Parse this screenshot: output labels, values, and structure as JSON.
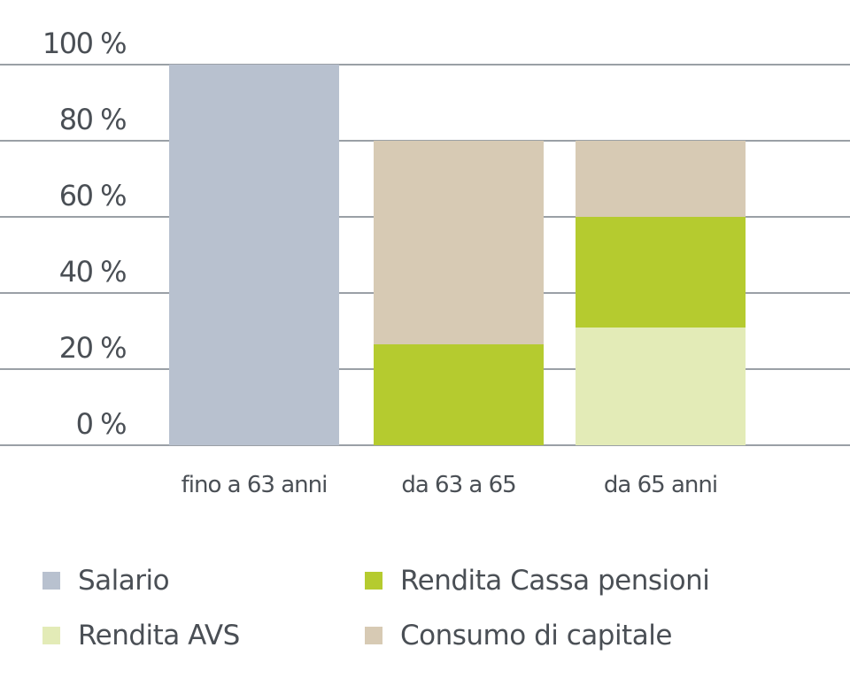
{
  "chart_data": {
    "type": "bar",
    "stacked": true,
    "title": "",
    "xlabel": "",
    "ylabel": "",
    "ylim": [
      0,
      100
    ],
    "yticks": [
      "0 %",
      "20 %",
      "40 %",
      "60 %",
      "80 %",
      "100 %"
    ],
    "grid": true,
    "legend_position": "bottom",
    "categories": [
      "fino a 63 anni",
      "da 63 a 65",
      "da 65 anni"
    ],
    "series": [
      {
        "name": "Salario",
        "color": "#b8c1cf",
        "values": [
          100,
          0,
          0
        ]
      },
      {
        "name": "Rendita AVS",
        "color": "#e3ebb7",
        "values": [
          0,
          0,
          31
        ]
      },
      {
        "name": "Rendita Cassa pensioni",
        "color": "#b5cb2f",
        "values": [
          0,
          26.5,
          29
        ]
      },
      {
        "name": "Consumo di capitale",
        "color": "#d7cab4",
        "values": [
          0,
          53.5,
          20
        ]
      }
    ]
  },
  "legend": {
    "items": [
      {
        "label": "Salario",
        "color": "#b8c1cf"
      },
      {
        "label": "Rendita Cassa pensioni",
        "color": "#b5cb2f"
      },
      {
        "label": "Rendita AVS",
        "color": "#e3ebb7"
      },
      {
        "label": "Consumo di capitale",
        "color": "#d7cab4"
      }
    ]
  }
}
